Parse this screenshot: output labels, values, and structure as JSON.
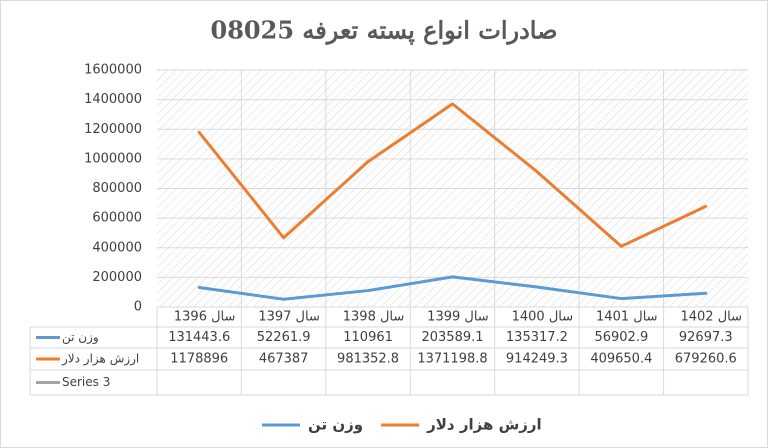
{
  "chart_data": {
    "type": "line",
    "title": "صادرات انواع پسته تعرفه 08025",
    "categories": [
      "سال 1396",
      "سال 1397",
      "سال 1398",
      "سال 1399",
      "سال 1400",
      "سال 1401",
      "سال 1402"
    ],
    "series": [
      {
        "name": "وزن تن",
        "color": "#5b9bd5",
        "values": [
          131443.6,
          52261.9,
          110961,
          203589.1,
          135317.2,
          56902.9,
          92697.3
        ]
      },
      {
        "name": "ارزش هزار دلار",
        "color": "#ed7d31",
        "values": [
          1178896,
          467387,
          981352.8,
          1371198.8,
          914249.3,
          409650.4,
          679260.6
        ]
      },
      {
        "name": "Series 3",
        "color": "#a5a5a5",
        "values": [
          null,
          null,
          null,
          null,
          null,
          null,
          null
        ]
      }
    ],
    "ylim": [
      0,
      1600000
    ],
    "yticks": [
      0,
      200000,
      400000,
      600000,
      800000,
      1000000,
      1200000,
      1400000,
      1600000
    ],
    "grid": true,
    "legend": "bottom"
  }
}
